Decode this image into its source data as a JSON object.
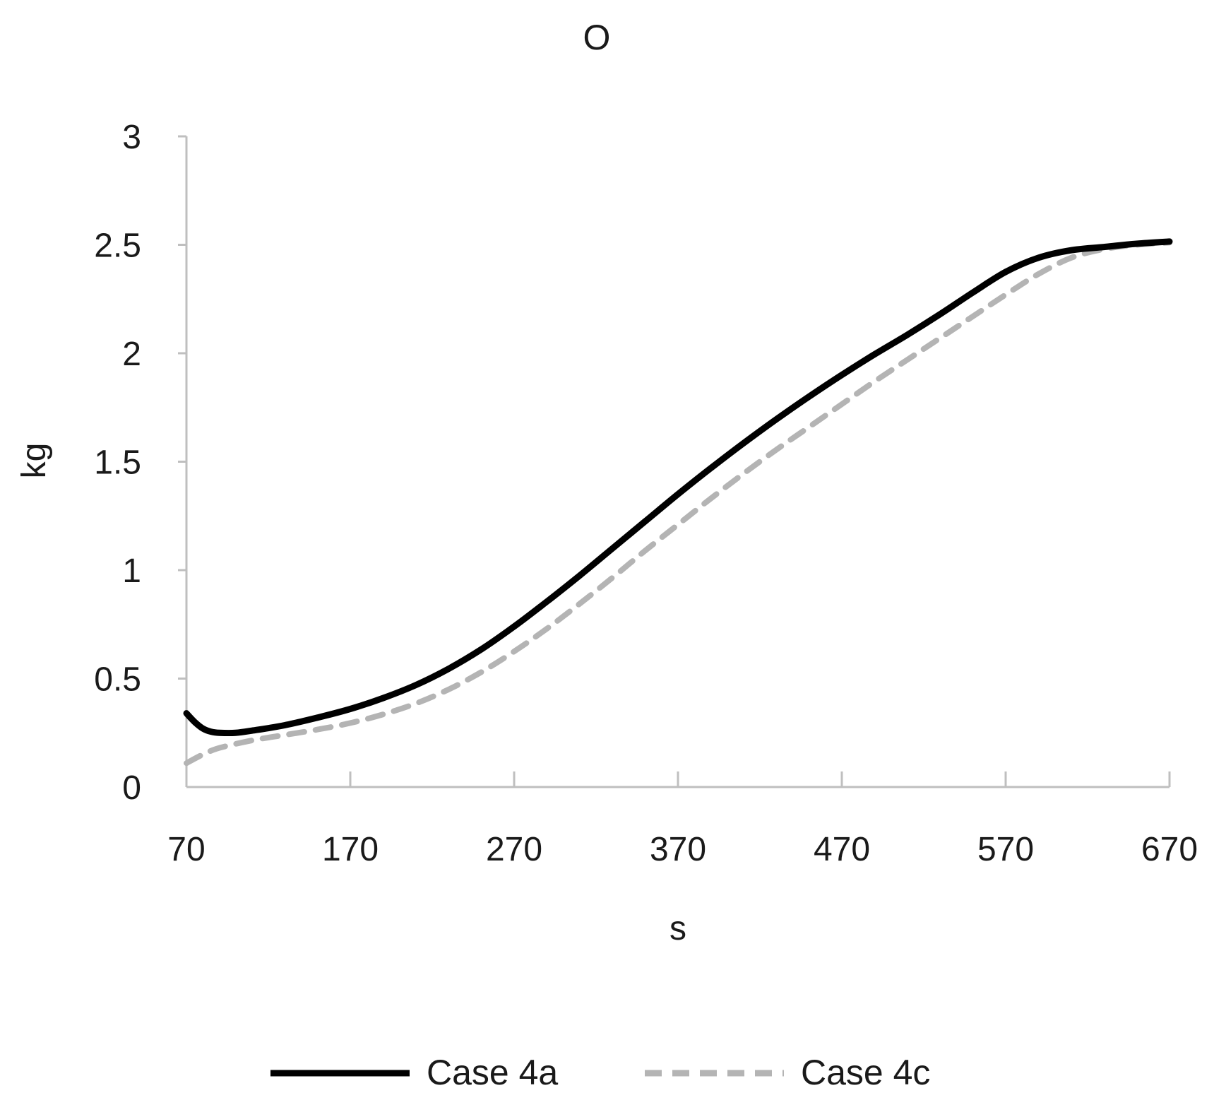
{
  "chart_data": {
    "type": "line",
    "title": "O",
    "xlabel": "s",
    "ylabel": "kg",
    "xlim": [
      70,
      670
    ],
    "ylim": [
      0,
      3
    ],
    "x_ticks": [
      70,
      170,
      270,
      370,
      470,
      570,
      670
    ],
    "x_tick_labels": [
      "70",
      "170",
      "270",
      "370",
      "470",
      "570",
      "670"
    ],
    "y_ticks": [
      0,
      0.5,
      1,
      1.5,
      2,
      2.5,
      3
    ],
    "y_tick_labels": [
      "0",
      "0.5",
      "1",
      "1.5",
      "2",
      "2.5",
      "3"
    ],
    "grid": false,
    "legend_position": "bottom",
    "series": [
      {
        "name": "Case 4a",
        "color": "#000000",
        "style": "solid",
        "x": [
          70,
          75,
          80,
          85,
          90,
          100,
          110,
          130,
          150,
          170,
          190,
          210,
          230,
          250,
          270,
          290,
          310,
          330,
          350,
          370,
          390,
          410,
          430,
          450,
          470,
          490,
          510,
          530,
          550,
          570,
          590,
          610,
          630,
          650,
          670
        ],
        "y": [
          0.34,
          0.3,
          0.27,
          0.255,
          0.25,
          0.25,
          0.26,
          0.285,
          0.32,
          0.36,
          0.41,
          0.47,
          0.545,
          0.635,
          0.74,
          0.855,
          0.975,
          1.1,
          1.225,
          1.35,
          1.47,
          1.585,
          1.695,
          1.8,
          1.9,
          1.995,
          2.085,
          2.18,
          2.28,
          2.375,
          2.44,
          2.475,
          2.49,
          2.505,
          2.515
        ]
      },
      {
        "name": "Case 4c",
        "color": "#b4b4b4",
        "style": "dashed",
        "x": [
          70,
          80,
          90,
          110,
          130,
          150,
          170,
          190,
          210,
          230,
          250,
          270,
          290,
          310,
          330,
          350,
          370,
          390,
          410,
          430,
          450,
          470,
          490,
          510,
          530,
          550,
          570,
          590,
          610,
          630,
          650,
          670
        ],
        "y": [
          0.11,
          0.15,
          0.18,
          0.215,
          0.24,
          0.265,
          0.295,
          0.335,
          0.385,
          0.45,
          0.53,
          0.625,
          0.73,
          0.845,
          0.965,
          1.09,
          1.21,
          1.33,
          1.445,
          1.555,
          1.66,
          1.765,
          1.87,
          1.97,
          2.07,
          2.17,
          2.27,
          2.365,
          2.44,
          2.48,
          2.5,
          2.51
        ]
      }
    ]
  }
}
